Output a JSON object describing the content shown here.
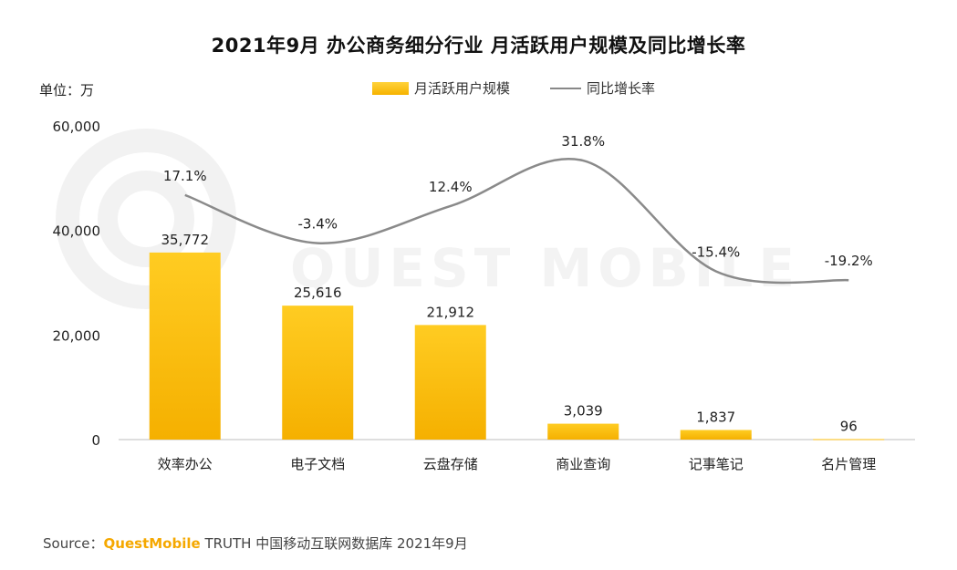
{
  "title": "2021年9月 办公商务细分行业 月活跃用户规模及同比增长率",
  "unit_label": "单位：万",
  "legend": {
    "bar_label": "月活跃用户规模",
    "line_label": "同比增长率"
  },
  "watermark_text": "QUEST MOBILE",
  "source": {
    "prefix": "Source：",
    "brand": "QuestMobile",
    "rest": "TRUTH 中国移动互联网数据库 2021年9月"
  },
  "colors": {
    "bar": "#f8bb0a",
    "line": "#8a8a8a",
    "brand": "#f5a800"
  },
  "chart_data": {
    "type": "bar",
    "categories": [
      "效率办公",
      "电子文档",
      "云盘存储",
      "商业查询",
      "记事笔记",
      "名片管理"
    ],
    "series": [
      {
        "name": "月活跃用户规模",
        "type": "bar",
        "values": [
          35772,
          25616,
          21912,
          3039,
          1837,
          96
        ],
        "labels": [
          "35,772",
          "25,616",
          "21,912",
          "3,039",
          "1,837",
          "96"
        ]
      },
      {
        "name": "同比增长率",
        "type": "line",
        "values": [
          17.1,
          -3.4,
          12.4,
          31.8,
          -15.4,
          -19.2
        ],
        "labels": [
          "17.1%",
          "-3.4%",
          "12.4%",
          "31.8%",
          "-15.4%",
          "-19.2%"
        ]
      }
    ],
    "yticks": [
      "60,000",
      "40,000",
      "20,000",
      "0"
    ],
    "ylim": [
      0,
      60000
    ],
    "grid": false,
    "legend_position": "top"
  }
}
